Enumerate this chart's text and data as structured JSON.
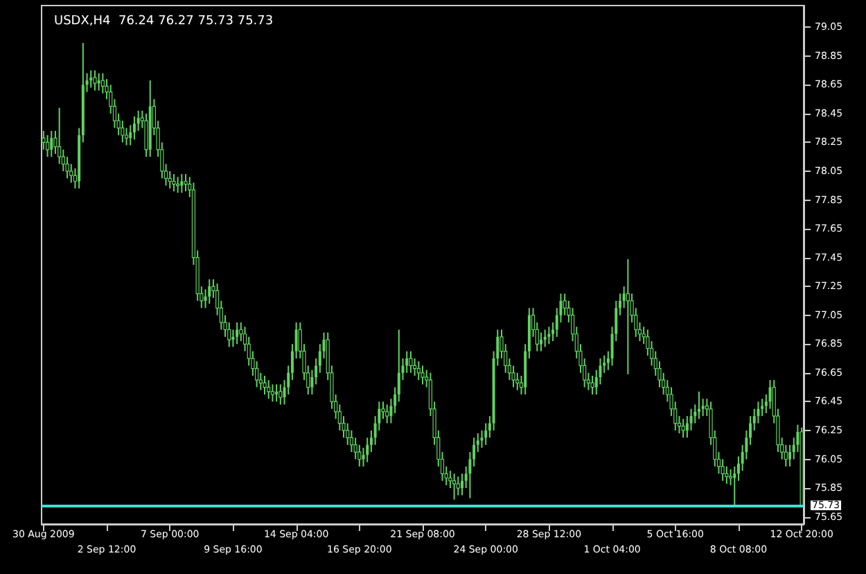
{
  "chart_data": {
    "type": "candlestick",
    "title": "USDX,H4  76.24 76.27 75.73 75.73",
    "color": "#5fd35f",
    "grid": false,
    "ylim": [
      75.6,
      79.2
    ],
    "yticks": [
      75.65,
      75.85,
      76.05,
      76.25,
      76.45,
      76.65,
      76.85,
      77.05,
      77.25,
      77.45,
      77.65,
      77.85,
      78.05,
      78.25,
      78.45,
      78.65,
      78.85,
      79.05
    ],
    "ref_lines": [
      {
        "axis": "y",
        "value": 75.73,
        "label": "75.73",
        "color": "#40e0d0"
      }
    ],
    "categories": [
      "30 Aug 2009",
      null,
      null,
      null,
      null,
      null,
      null,
      null,
      null,
      null,
      null,
      null,
      null,
      null,
      null,
      null,
      "2 Sep 12:00",
      null,
      null,
      null,
      null,
      null,
      null,
      null,
      null,
      null,
      null,
      null,
      null,
      null,
      null,
      null,
      "7 Sep 00:00",
      null,
      null,
      null,
      null,
      null,
      null,
      null,
      null,
      null,
      null,
      null,
      null,
      null,
      null,
      null,
      "9 Sep 16:00",
      null,
      null,
      null,
      null,
      null,
      null,
      null,
      null,
      null,
      null,
      null,
      null,
      null,
      null,
      null,
      "14 Sep 04:00",
      null,
      null,
      null,
      null,
      null,
      null,
      null,
      null,
      null,
      null,
      null,
      null,
      null,
      null,
      null,
      "16 Sep 20:00",
      null,
      null,
      null,
      null,
      null,
      null,
      null,
      null,
      null,
      null,
      null,
      null,
      null,
      null,
      null,
      "21 Sep 08:00",
      null,
      null,
      null,
      null,
      null,
      null,
      null,
      null,
      null,
      null,
      null,
      null,
      null,
      null,
      null,
      "24 Sep 00:00",
      null,
      null,
      null,
      null,
      null,
      null,
      null,
      null,
      null,
      null,
      null,
      null,
      null,
      null,
      null,
      "28 Sep 12:00",
      null,
      null,
      null,
      null,
      null,
      null,
      null,
      null,
      null,
      null,
      null,
      null,
      null,
      null,
      null,
      "1 Oct 04:00",
      null,
      null,
      null,
      null,
      null,
      null,
      null,
      null,
      null,
      null,
      null,
      null,
      null,
      null,
      null,
      "5 Oct 16:00",
      null,
      null,
      null,
      null,
      null,
      null,
      null,
      null,
      null,
      null,
      null,
      null,
      null,
      null,
      null,
      "8 Oct 08:00",
      null,
      null,
      null,
      null,
      null,
      null,
      null,
      null,
      null,
      null,
      null,
      null,
      null,
      null,
      null,
      "12 Oct 20:00"
    ],
    "ohlc": [
      [
        78.28,
        78.33,
        78.2,
        78.25
      ],
      [
        78.25,
        78.3,
        78.15,
        78.2
      ],
      [
        78.2,
        78.33,
        78.15,
        78.28
      ],
      [
        78.28,
        78.33,
        78.17,
        78.22
      ],
      [
        78.22,
        78.49,
        78.1,
        78.15
      ],
      [
        78.15,
        78.2,
        78.05,
        78.1
      ],
      [
        78.1,
        78.15,
        78.0,
        78.05
      ],
      [
        78.05,
        78.1,
        77.97,
        78.02
      ],
      [
        78.02,
        78.07,
        77.93,
        77.98
      ],
      [
        77.98,
        78.35,
        77.93,
        78.3
      ],
      [
        78.3,
        78.94,
        78.25,
        78.65
      ],
      [
        78.65,
        78.73,
        78.6,
        78.68
      ],
      [
        78.68,
        78.75,
        78.63,
        78.7
      ],
      [
        78.7,
        78.75,
        78.61,
        78.66
      ],
      [
        78.66,
        78.73,
        78.61,
        78.68
      ],
      [
        78.68,
        78.73,
        78.59,
        78.64
      ],
      [
        78.64,
        78.69,
        78.55,
        78.6
      ],
      [
        78.6,
        78.65,
        78.45,
        78.5
      ],
      [
        78.5,
        78.55,
        78.35,
        78.4
      ],
      [
        78.4,
        78.45,
        78.3,
        78.35
      ],
      [
        78.35,
        78.4,
        78.25,
        78.3
      ],
      [
        78.3,
        78.35,
        78.23,
        78.28
      ],
      [
        78.28,
        78.37,
        78.23,
        78.32
      ],
      [
        78.32,
        78.43,
        78.27,
        78.38
      ],
      [
        78.38,
        78.47,
        78.33,
        78.42
      ],
      [
        78.42,
        78.47,
        78.35,
        78.4
      ],
      [
        78.4,
        78.45,
        78.15,
        78.2
      ],
      [
        78.2,
        78.68,
        78.15,
        78.5
      ],
      [
        78.5,
        78.55,
        78.3,
        78.35
      ],
      [
        78.35,
        78.4,
        78.15,
        78.2
      ],
      [
        78.2,
        78.25,
        78.0,
        78.05
      ],
      [
        78.05,
        78.1,
        77.95,
        78.0
      ],
      [
        78.0,
        78.05,
        77.93,
        77.98
      ],
      [
        77.98,
        78.03,
        77.91,
        77.96
      ],
      [
        77.96,
        78.01,
        77.9,
        77.95
      ],
      [
        77.95,
        78.03,
        77.9,
        77.98
      ],
      [
        77.98,
        78.03,
        77.91,
        77.96
      ],
      [
        77.96,
        78.01,
        77.87,
        77.92
      ],
      [
        77.92,
        77.97,
        77.4,
        77.45
      ],
      [
        77.45,
        77.5,
        77.15,
        77.2
      ],
      [
        77.2,
        77.25,
        77.1,
        77.15
      ],
      [
        77.15,
        77.23,
        77.1,
        77.18
      ],
      [
        77.18,
        77.3,
        77.13,
        77.25
      ],
      [
        77.25,
        77.3,
        77.17,
        77.22
      ],
      [
        77.22,
        77.27,
        77.05,
        77.1
      ],
      [
        77.1,
        77.15,
        76.95,
        77.0
      ],
      [
        77.0,
        77.05,
        76.9,
        76.95
      ],
      [
        76.95,
        77.0,
        76.83,
        76.88
      ],
      [
        76.88,
        76.95,
        76.83,
        76.9
      ],
      [
        76.9,
        77.0,
        76.85,
        76.95
      ],
      [
        76.95,
        77.0,
        76.87,
        76.92
      ],
      [
        76.92,
        76.97,
        76.8,
        76.85
      ],
      [
        76.85,
        76.9,
        76.7,
        76.75
      ],
      [
        76.75,
        76.8,
        76.63,
        76.68
      ],
      [
        76.68,
        76.73,
        76.55,
        76.6
      ],
      [
        76.6,
        76.65,
        76.53,
        76.58
      ],
      [
        76.58,
        76.63,
        76.5,
        76.55
      ],
      [
        76.55,
        76.6,
        76.47,
        76.52
      ],
      [
        76.52,
        76.57,
        76.45,
        76.5
      ],
      [
        76.5,
        76.57,
        76.45,
        76.52
      ],
      [
        76.52,
        76.57,
        76.43,
        76.48
      ],
      [
        76.48,
        76.6,
        76.43,
        76.55
      ],
      [
        76.55,
        76.7,
        76.5,
        76.65
      ],
      [
        76.65,
        76.85,
        76.6,
        76.8
      ],
      [
        76.8,
        77.0,
        76.75,
        76.95
      ],
      [
        76.95,
        77.0,
        76.75,
        76.8
      ],
      [
        76.8,
        76.85,
        76.6,
        76.65
      ],
      [
        76.65,
        76.7,
        76.5,
        76.55
      ],
      [
        76.55,
        76.67,
        76.5,
        76.62
      ],
      [
        76.62,
        76.75,
        76.57,
        76.7
      ],
      [
        76.7,
        76.85,
        76.65,
        76.8
      ],
      [
        76.8,
        76.93,
        76.75,
        76.88
      ],
      [
        76.88,
        76.93,
        76.6,
        76.65
      ],
      [
        76.65,
        76.7,
        76.4,
        76.45
      ],
      [
        76.45,
        76.5,
        76.33,
        76.38
      ],
      [
        76.38,
        76.43,
        76.25,
        76.3
      ],
      [
        76.3,
        76.35,
        76.2,
        76.25
      ],
      [
        76.25,
        76.3,
        76.15,
        76.2
      ],
      [
        76.2,
        76.25,
        76.1,
        76.15
      ],
      [
        76.15,
        76.2,
        76.05,
        76.1
      ],
      [
        76.1,
        76.15,
        76.0,
        76.05
      ],
      [
        76.05,
        76.13,
        76.0,
        76.08
      ],
      [
        76.08,
        76.2,
        76.03,
        76.15
      ],
      [
        76.15,
        76.25,
        76.1,
        76.2
      ],
      [
        76.2,
        76.35,
        76.15,
        76.3
      ],
      [
        76.3,
        76.45,
        76.25,
        76.4
      ],
      [
        76.4,
        76.45,
        76.33,
        76.38
      ],
      [
        76.38,
        76.43,
        76.3,
        76.35
      ],
      [
        76.35,
        76.47,
        76.3,
        76.42
      ],
      [
        76.42,
        76.55,
        76.37,
        76.5
      ],
      [
        76.5,
        76.95,
        76.45,
        76.65
      ],
      [
        76.65,
        76.75,
        76.6,
        76.7
      ],
      [
        76.7,
        76.8,
        76.65,
        76.75
      ],
      [
        76.75,
        76.8,
        76.65,
        76.7
      ],
      [
        76.7,
        76.75,
        76.63,
        76.68
      ],
      [
        76.68,
        76.73,
        76.6,
        76.65
      ],
      [
        76.65,
        76.7,
        76.57,
        76.62
      ],
      [
        76.62,
        76.67,
        76.55,
        76.6
      ],
      [
        76.6,
        76.65,
        76.35,
        76.4
      ],
      [
        76.4,
        76.45,
        76.15,
        76.2
      ],
      [
        76.2,
        76.25,
        76.0,
        76.05
      ],
      [
        76.05,
        76.1,
        75.9,
        75.95
      ],
      [
        75.95,
        76.0,
        75.87,
        75.92
      ],
      [
        75.92,
        75.97,
        75.85,
        75.9
      ],
      [
        75.9,
        75.95,
        75.77,
        75.88
      ],
      [
        75.88,
        75.93,
        75.8,
        75.85
      ],
      [
        75.85,
        75.95,
        75.8,
        75.9
      ],
      [
        75.9,
        76.0,
        75.85,
        75.95
      ],
      [
        75.95,
        76.1,
        75.78,
        76.05
      ],
      [
        76.05,
        76.2,
        76.0,
        76.15
      ],
      [
        76.15,
        76.23,
        76.1,
        76.18
      ],
      [
        76.18,
        76.25,
        76.13,
        76.2
      ],
      [
        76.2,
        76.3,
        76.15,
        76.25
      ],
      [
        76.25,
        76.35,
        76.2,
        76.3
      ],
      [
        76.3,
        76.8,
        76.25,
        76.75
      ],
      [
        76.75,
        76.95,
        76.7,
        76.9
      ],
      [
        76.9,
        76.95,
        76.75,
        76.8
      ],
      [
        76.8,
        76.85,
        76.65,
        76.7
      ],
      [
        76.7,
        76.75,
        76.6,
        76.65
      ],
      [
        76.65,
        76.7,
        76.55,
        76.6
      ],
      [
        76.6,
        76.65,
        76.53,
        76.58
      ],
      [
        76.58,
        76.63,
        76.5,
        76.55
      ],
      [
        76.55,
        76.85,
        76.5,
        76.8
      ],
      [
        76.8,
        77.1,
        76.75,
        77.05
      ],
      [
        77.05,
        77.1,
        76.9,
        76.95
      ],
      [
        76.95,
        77.0,
        76.8,
        76.85
      ],
      [
        76.85,
        76.93,
        76.8,
        76.88
      ],
      [
        76.88,
        76.95,
        76.83,
        76.9
      ],
      [
        76.9,
        76.97,
        76.85,
        76.92
      ],
      [
        76.92,
        77.0,
        76.87,
        76.95
      ],
      [
        76.95,
        77.1,
        76.9,
        77.05
      ],
      [
        77.05,
        77.2,
        77.0,
        77.15
      ],
      [
        77.15,
        77.2,
        77.05,
        77.1
      ],
      [
        77.1,
        77.15,
        77.0,
        77.05
      ],
      [
        77.05,
        77.1,
        76.87,
        76.92
      ],
      [
        76.92,
        76.97,
        76.75,
        76.8
      ],
      [
        76.8,
        76.85,
        76.65,
        76.7
      ],
      [
        76.7,
        76.75,
        76.55,
        76.6
      ],
      [
        76.6,
        76.65,
        76.53,
        76.58
      ],
      [
        76.58,
        76.63,
        76.5,
        76.55
      ],
      [
        76.55,
        76.67,
        76.5,
        76.62
      ],
      [
        76.62,
        76.75,
        76.57,
        76.7
      ],
      [
        76.7,
        76.77,
        76.65,
        76.72
      ],
      [
        76.72,
        76.8,
        76.67,
        76.75
      ],
      [
        76.75,
        76.97,
        76.7,
        76.92
      ],
      [
        76.92,
        77.15,
        76.87,
        77.1
      ],
      [
        77.1,
        77.2,
        77.05,
        77.15
      ],
      [
        77.15,
        77.25,
        77.1,
        77.2
      ],
      [
        77.2,
        77.44,
        76.64,
        77.15
      ],
      [
        77.15,
        77.2,
        77.0,
        77.05
      ],
      [
        77.05,
        77.1,
        76.9,
        76.95
      ],
      [
        76.95,
        77.0,
        76.87,
        76.92
      ],
      [
        76.92,
        76.97,
        76.85,
        76.9
      ],
      [
        76.9,
        76.95,
        76.77,
        76.82
      ],
      [
        76.82,
        76.87,
        76.7,
        76.75
      ],
      [
        76.75,
        76.8,
        76.63,
        76.68
      ],
      [
        76.68,
        76.73,
        76.55,
        76.6
      ],
      [
        76.6,
        76.65,
        76.5,
        76.55
      ],
      [
        76.55,
        76.6,
        76.45,
        76.5
      ],
      [
        76.5,
        76.55,
        76.35,
        76.4
      ],
      [
        76.4,
        76.45,
        76.25,
        76.3
      ],
      [
        76.3,
        76.35,
        76.23,
        76.28
      ],
      [
        76.28,
        76.33,
        76.2,
        76.25
      ],
      [
        76.25,
        76.35,
        76.2,
        76.3
      ],
      [
        76.3,
        76.4,
        76.25,
        76.35
      ],
      [
        76.35,
        76.43,
        76.3,
        76.38
      ],
      [
        76.38,
        76.52,
        76.33,
        76.4
      ],
      [
        76.4,
        76.47,
        76.35,
        76.42
      ],
      [
        76.42,
        76.47,
        76.35,
        76.4
      ],
      [
        76.4,
        76.45,
        76.15,
        76.2
      ],
      [
        76.2,
        76.25,
        76.0,
        76.05
      ],
      [
        76.05,
        76.1,
        75.95,
        76.0
      ],
      [
        76.0,
        76.05,
        75.9,
        75.95
      ],
      [
        75.95,
        76.0,
        75.88,
        75.93
      ],
      [
        75.93,
        75.98,
        75.87,
        75.92
      ],
      [
        75.92,
        76.0,
        75.73,
        75.95
      ],
      [
        75.95,
        76.07,
        75.9,
        76.02
      ],
      [
        76.02,
        76.15,
        75.97,
        76.1
      ],
      [
        76.1,
        76.25,
        76.05,
        76.2
      ],
      [
        76.2,
        76.35,
        76.15,
        76.3
      ],
      [
        76.3,
        76.4,
        76.25,
        76.35
      ],
      [
        76.35,
        76.45,
        76.3,
        76.4
      ],
      [
        76.4,
        76.47,
        76.35,
        76.42
      ],
      [
        76.42,
        76.5,
        76.37,
        76.45
      ],
      [
        76.45,
        76.6,
        76.4,
        76.55
      ],
      [
        76.55,
        76.6,
        76.3,
        76.35
      ],
      [
        76.35,
        76.4,
        76.1,
        76.15
      ],
      [
        76.15,
        76.2,
        76.05,
        76.1
      ],
      [
        76.1,
        76.15,
        76.0,
        76.05
      ],
      [
        76.05,
        76.15,
        76.0,
        76.1
      ],
      [
        76.1,
        76.2,
        76.05,
        76.15
      ],
      [
        76.15,
        76.29,
        76.1,
        76.24
      ],
      [
        76.24,
        76.27,
        75.73,
        75.73
      ]
    ]
  }
}
